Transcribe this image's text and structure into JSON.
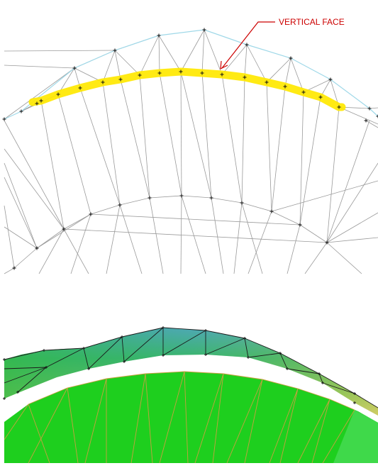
{
  "callout": {
    "label": "VERTICAL FACE"
  },
  "colors": {
    "mesh_line": "#9a9a9a",
    "outer_boundary": "#9fd8e8",
    "highlight": "#ffe800",
    "node": "#111111",
    "callout": "#cc0000",
    "surface_green": "#1ecf1e",
    "surface_edge": "#c8a040",
    "ring_green": "#3cc04a",
    "ring_yellow": "#d8d86a",
    "ring_blue": "#5fb0b8"
  },
  "panels": [
    {
      "name": "wireframe-view"
    },
    {
      "name": "shaded-surface-view"
    }
  ]
}
